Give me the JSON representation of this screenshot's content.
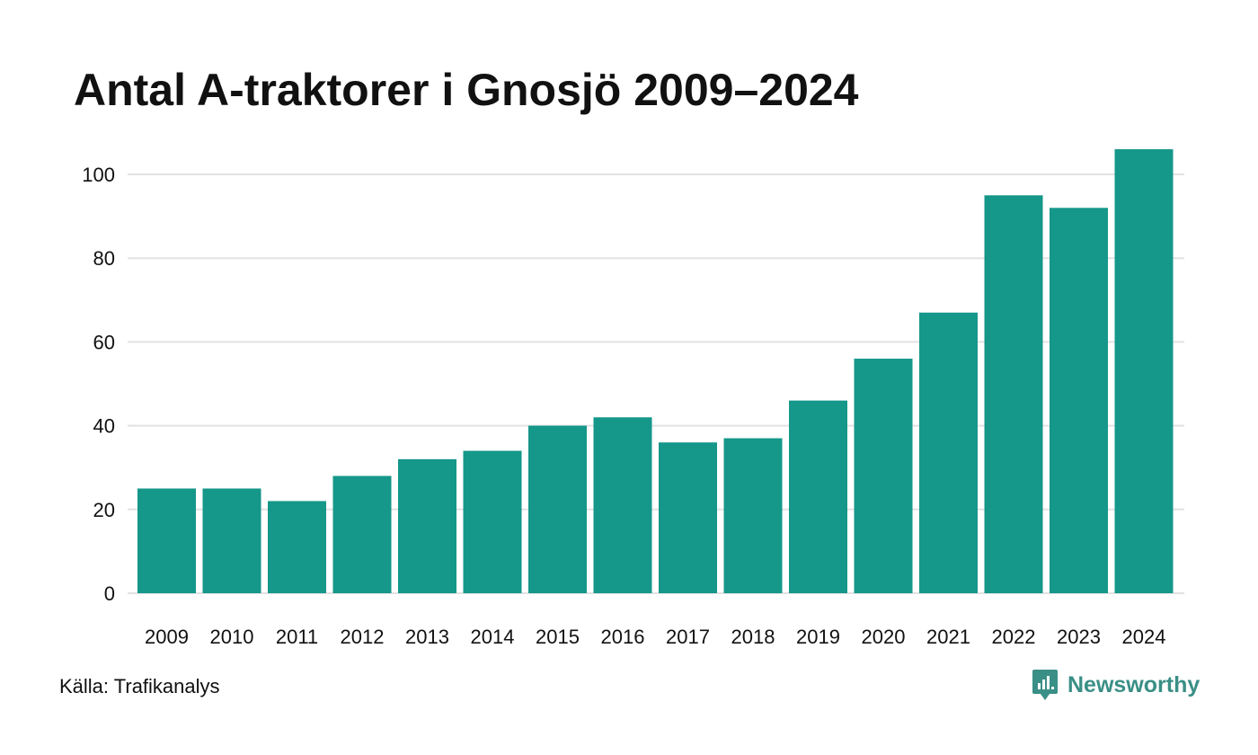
{
  "title": "Antal A-traktorer i Gnosjö 2009–2024",
  "source": "Källa: Trafikanalys",
  "brand": {
    "name": "Newsworthy",
    "icon": "newsworthy-logo-icon",
    "color": "#3a8f86"
  },
  "chart_data": {
    "type": "bar",
    "title": "Antal A-traktorer i Gnosjö 2009–2024",
    "xlabel": "",
    "ylabel": "",
    "categories": [
      "2009",
      "2010",
      "2011",
      "2012",
      "2013",
      "2014",
      "2015",
      "2016",
      "2017",
      "2018",
      "2019",
      "2020",
      "2021",
      "2022",
      "2023",
      "2024"
    ],
    "values": [
      25,
      25,
      22,
      28,
      32,
      34,
      40,
      42,
      36,
      37,
      46,
      56,
      67,
      95,
      92,
      106
    ],
    "ylim": [
      0,
      110
    ],
    "yticks": [
      0,
      20,
      40,
      60,
      80,
      100
    ],
    "grid": true,
    "bar_color": "#15978a",
    "grid_color": "#e2e2e2"
  }
}
